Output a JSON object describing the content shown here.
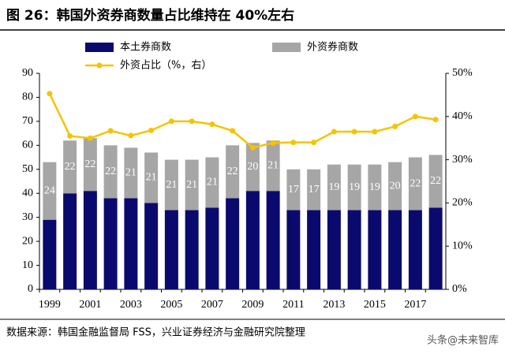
{
  "chart_data": {
    "type": "bar-line",
    "title": "图 26：韩国外资券商数量占比维持在 40%左右",
    "source": "数据来源：韩国金融监督局 FSS，兴业证券经济与金融研究院整理",
    "watermark": "头条@未来智库",
    "categories": [
      "1999",
      null,
      "2001",
      null,
      "2003",
      null,
      "2005",
      null,
      "2007",
      null,
      "2009",
      null,
      "2011",
      null,
      "2013",
      null,
      "2015",
      null,
      "2017",
      null
    ],
    "series": [
      {
        "name": "本土券商数",
        "type": "bar",
        "color": "#0a0a6e",
        "values": [
          29,
          40,
          41,
          38,
          38,
          36,
          33,
          33,
          34,
          38,
          41,
          41,
          33,
          33,
          33,
          33,
          33,
          33,
          33,
          34
        ]
      },
      {
        "name": "外资券商数",
        "type": "bar",
        "color": "#a6a6a6",
        "values": [
          24,
          22,
          22,
          22,
          21,
          21,
          21,
          21,
          21,
          22,
          20,
          21,
          17,
          17,
          19,
          19,
          19,
          20,
          22,
          22
        ]
      },
      {
        "name": "外资占比（%，右）",
        "type": "line",
        "axis": "y2",
        "color": "#f5c400",
        "values": [
          45.3,
          35.5,
          35,
          36.7,
          35.6,
          36.8,
          38.9,
          38.9,
          38.2,
          36.7,
          32.8,
          33.9,
          34,
          34,
          36.5,
          36.5,
          36.5,
          37.7,
          40,
          39.3
        ]
      }
    ],
    "ylim": [
      0,
      90
    ],
    "yticks": [
      0,
      10,
      20,
      30,
      40,
      50,
      60,
      70,
      80,
      90
    ],
    "y2lim": [
      0,
      50
    ],
    "y2ticks": [
      {
        "value": 0,
        "label": "0%"
      },
      {
        "value": 10,
        "label": "10%"
      },
      {
        "value": 20,
        "label": "20%"
      },
      {
        "value": 30,
        "label": "30%"
      },
      {
        "value": 40,
        "label": "40%"
      },
      {
        "value": 50,
        "label": "50%"
      }
    ]
  }
}
